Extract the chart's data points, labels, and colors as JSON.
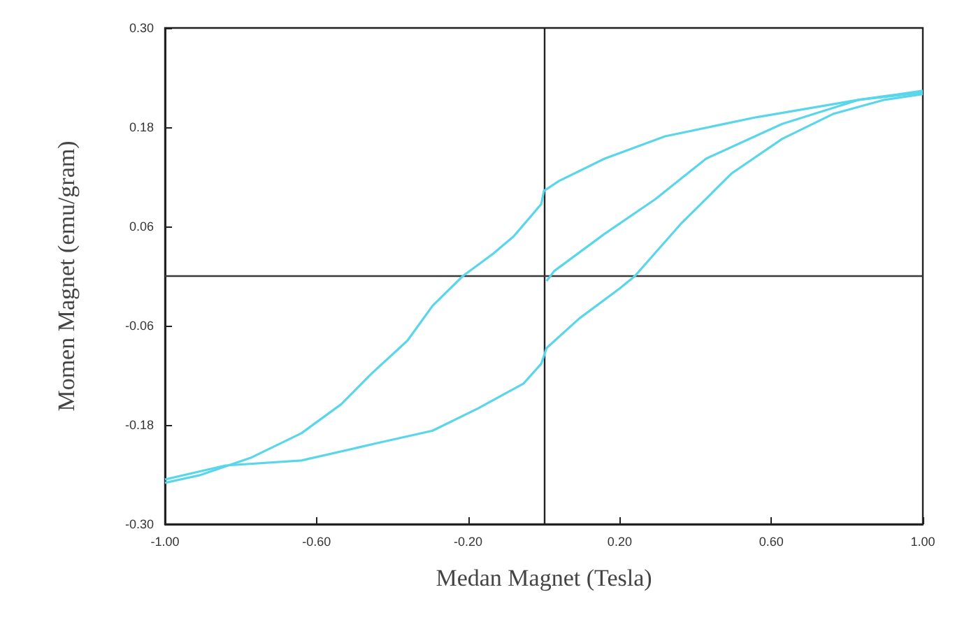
{
  "chart_data": {
    "type": "line",
    "xlabel": "Medan Magnet (Tesla)",
    "ylabel": "Momen Magnet (emu/gram)",
    "xlim": [
      -1,
      1
    ],
    "ylim": [
      -0.3,
      0.3
    ],
    "xticks": [
      {
        "value": -1,
        "label": "-1.00"
      },
      {
        "value": -0.6,
        "label": "-0.60"
      },
      {
        "value": -0.2,
        "label": "-0.20"
      },
      {
        "value": 0.2,
        "label": "0.20"
      },
      {
        "value": 0.6,
        "label": "0.60"
      },
      {
        "value": 1,
        "label": "1.00"
      }
    ],
    "yticks": [
      {
        "value": -0.3,
        "label": "-0.30"
      },
      {
        "value": -0.18,
        "label": "-0.18"
      },
      {
        "value": -0.06,
        "label": "-0.06"
      },
      {
        "value": 0.06,
        "label": "0.06"
      },
      {
        "value": 0.18,
        "label": "0.18"
      },
      {
        "value": 0.3,
        "label": "0.30"
      }
    ],
    "grid": false,
    "marker": "none",
    "line_style": "solid",
    "ref_lines": [
      {
        "axis": "x",
        "value": 0,
        "color": "#222222"
      },
      {
        "axis": "y",
        "value": 0,
        "color": "#3a3a3a"
      }
    ],
    "series": [
      {
        "color": "#5ad6ea",
        "x": [
          1,
          0.83,
          0.56,
          0.32,
          0.16,
          0.04,
          0,
          -0.007,
          -0.08,
          -0.134,
          -0.214,
          -0.294,
          -0.36,
          -0.455,
          -0.535,
          -0.64,
          -0.775,
          -0.91,
          -1
        ],
        "values": [
          0.224,
          0.213,
          0.192,
          0.169,
          0.142,
          0.115,
          0.103,
          0.087,
          0.048,
          0.027,
          0,
          -0.036,
          -0.078,
          -0.118,
          -0.155,
          -0.19,
          -0.22,
          -0.241,
          -0.25
        ]
      },
      {
        "color": "#5ad6ea",
        "x": [
          -1,
          -0.84,
          -0.64,
          -0.44,
          -0.294,
          -0.174,
          -0.054,
          -0.007,
          0.007,
          0.094,
          0.2,
          0.24,
          0.361,
          0.495,
          0.629,
          0.763,
          0.897,
          1
        ],
        "values": [
          -0.246,
          -0.229,
          -0.223,
          -0.202,
          -0.187,
          -0.16,
          -0.13,
          -0.106,
          -0.087,
          -0.051,
          -0.015,
          0,
          0.063,
          0.124,
          0.166,
          0.196,
          0.213,
          0.22
        ]
      },
      {
        "color": "#5ad6ea",
        "x": [
          0.007,
          0.027,
          0.16,
          0.294,
          0.428,
          0.629,
          0.83,
          1
        ],
        "values": [
          -0.006,
          0.006,
          0.051,
          0.093,
          0.142,
          0.184,
          0.213,
          0.222
        ]
      }
    ]
  }
}
